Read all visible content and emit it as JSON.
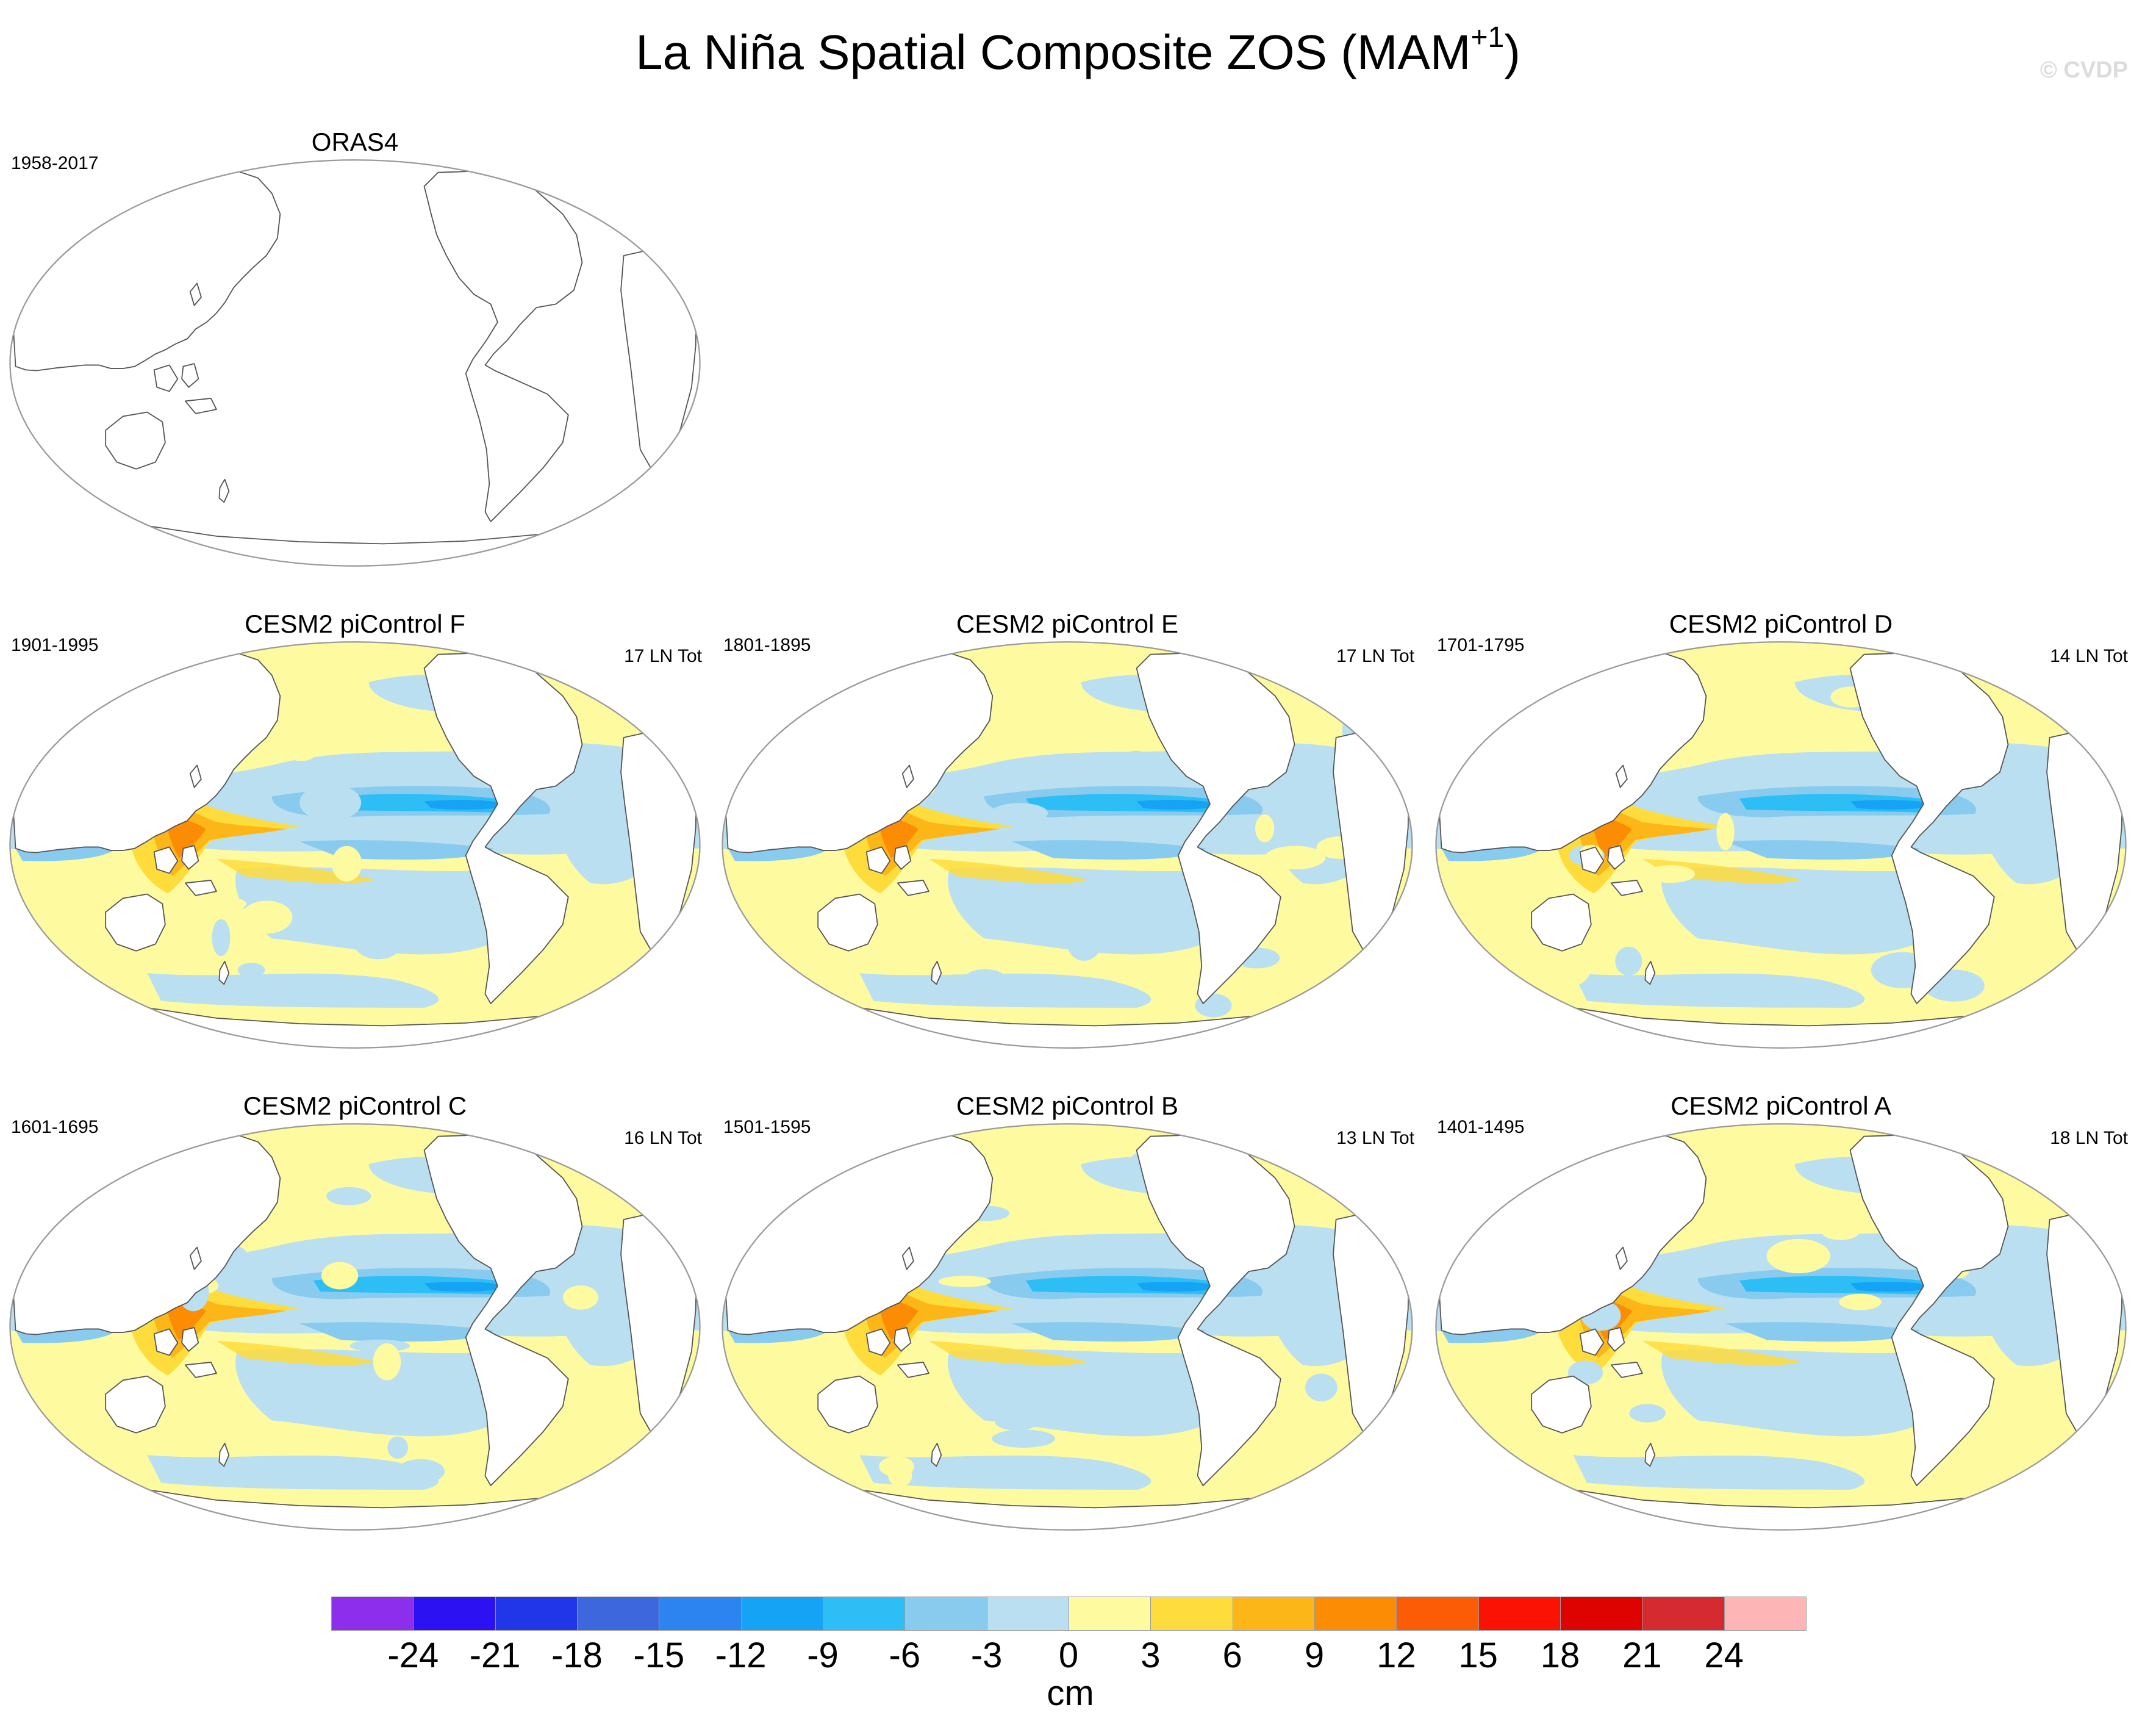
{
  "figure": {
    "title": "La Niña Spatial Composite ZOS (MAM",
    "title_sup": "+1",
    "title_end": ")",
    "watermark": "© CVDP"
  },
  "panels": [
    {
      "id": "oras4",
      "title": "ORAS4",
      "period": "1958-2017",
      "count": "",
      "filled": false
    },
    {
      "id": "f",
      "title": "CESM2 piControl F",
      "period": "1901-1995",
      "count": "17 LN Tot",
      "filled": true,
      "variant": 0
    },
    {
      "id": "e",
      "title": "CESM2 piControl E",
      "period": "1801-1895",
      "count": "17 LN Tot",
      "filled": true,
      "variant": 1
    },
    {
      "id": "d",
      "title": "CESM2 piControl D",
      "period": "1701-1795",
      "count": "14 LN Tot",
      "filled": true,
      "variant": 2
    },
    {
      "id": "c",
      "title": "CESM2 piControl C",
      "period": "1601-1695",
      "count": "16 LN Tot",
      "filled": true,
      "variant": 3
    },
    {
      "id": "b",
      "title": "CESM2 piControl B",
      "period": "1501-1595",
      "count": "13 LN Tot",
      "filled": true,
      "variant": 4
    },
    {
      "id": "a",
      "title": "CESM2 piControl A",
      "period": "1401-1495",
      "count": "18 LN Tot",
      "filled": true,
      "variant": 5
    }
  ],
  "colorbar": {
    "unit": "cm",
    "labels": [
      "-24",
      "-21",
      "-18",
      "-15",
      "-12",
      "-9",
      "-6",
      "-3",
      "0",
      "3",
      "6",
      "9",
      "12",
      "15",
      "18",
      "21",
      "24"
    ],
    "colors": [
      "#8c2eeb",
      "#2c12f2",
      "#2136e8",
      "#3d67dd",
      "#2c84f0",
      "#15a3f5",
      "#2ebef6",
      "#89cbef",
      "#b9dff1",
      "#fefaa0",
      "#fedc3c",
      "#fcb618",
      "#fc8c03",
      "#fb5c05",
      "#fb1204",
      "#de0200",
      "#d52a2f",
      "#feb5b6"
    ]
  }
}
